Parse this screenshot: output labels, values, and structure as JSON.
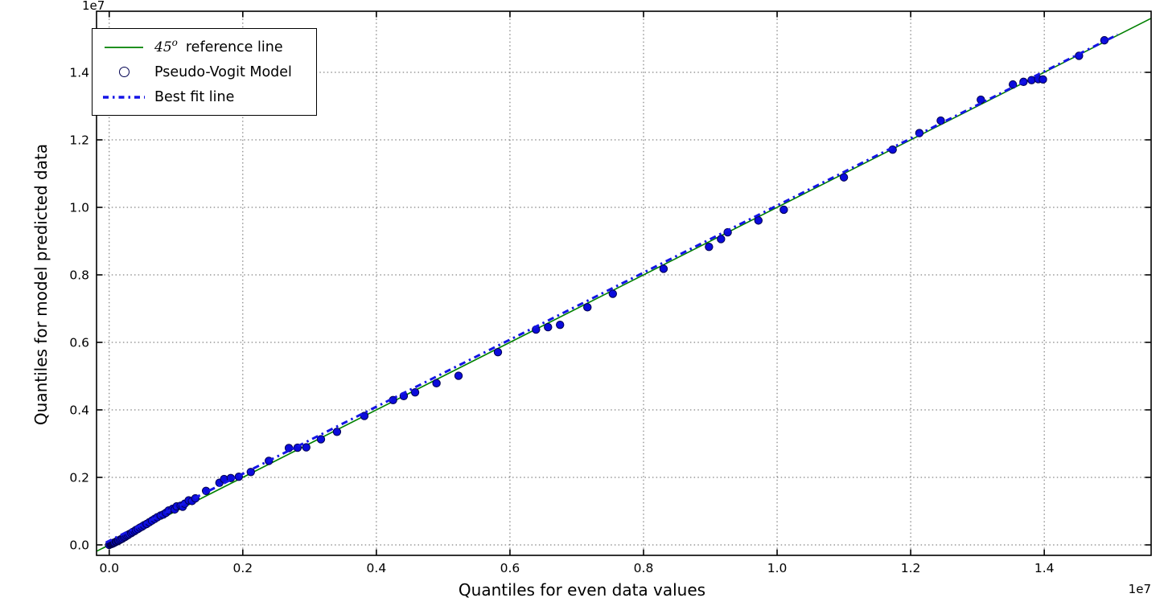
{
  "figure": {
    "background": "#ffffff",
    "plot_background": "#ffffff"
  },
  "chart_data": {
    "type": "scatter",
    "title": "",
    "xlabel": "Quantiles for even data values",
    "ylabel": "Quantiles for model predicted data",
    "x_offset_label": "1e7",
    "y_offset_label": "1e7",
    "unit_multiplier": 10000000,
    "xlim": [
      -0.019,
      1.56
    ],
    "ylim": [
      -0.031,
      1.581
    ],
    "grid": {
      "on": true,
      "style": "dotted",
      "color": "#666666"
    },
    "xticks": {
      "values": [
        0.0,
        0.2,
        0.4,
        0.6,
        0.8,
        1.0,
        1.2,
        1.4
      ],
      "labels": [
        "0.0",
        "0.2",
        "0.4",
        "0.6",
        "0.8",
        "1.0",
        "1.2",
        "1.4"
      ]
    },
    "yticks": {
      "values": [
        0.0,
        0.2,
        0.4,
        0.6,
        0.8,
        1.0,
        1.2,
        1.4
      ],
      "labels": [
        "0.0",
        "0.2",
        "0.4",
        "0.6",
        "0.8",
        "1.0",
        "1.2",
        "1.4"
      ]
    },
    "legend": {
      "position": "upper left",
      "items": [
        {
          "label": "45° reference line",
          "math": "45",
          "sup": "o",
          "text": "reference line",
          "swatch": "line",
          "color": "#008000"
        },
        {
          "label": "Pseudo-Vogit Model",
          "text": "Pseudo-Vogit Model",
          "swatch": "dot",
          "color": "#0b0bdb"
        },
        {
          "label": "Best fit line",
          "text": "Best fit line",
          "swatch": "dashdot",
          "color": "#1414e6"
        }
      ]
    },
    "series": [
      {
        "name": "45-degree reference line",
        "type": "line",
        "color": "#008000",
        "width": 1.6,
        "points": [
          [
            -0.019,
            -0.019
          ],
          [
            1.56,
            1.56
          ]
        ]
      },
      {
        "name": "Pseudo-Vogit Model",
        "type": "scatter",
        "color": "#0b0bdb",
        "edge_color": "#000050",
        "marker_radius": 4.7,
        "points": [
          [
            0.0,
            0.0
          ],
          [
            0.002,
            0.002
          ],
          [
            0.003,
            0.003
          ],
          [
            0.004,
            0.003
          ],
          [
            0.005,
            0.004
          ],
          [
            0.006,
            0.005
          ],
          [
            0.007,
            0.006
          ],
          [
            0.008,
            0.007
          ],
          [
            0.01,
            0.009
          ],
          [
            0.011,
            0.01
          ],
          [
            0.013,
            0.012
          ],
          [
            0.014,
            0.013
          ],
          [
            0.016,
            0.015
          ],
          [
            0.018,
            0.017
          ],
          [
            0.02,
            0.019
          ],
          [
            0.022,
            0.022
          ],
          [
            0.024,
            0.024
          ],
          [
            0.026,
            0.027
          ],
          [
            0.028,
            0.029
          ],
          [
            0.03,
            0.032
          ],
          [
            0.033,
            0.035
          ],
          [
            0.035,
            0.038
          ],
          [
            0.038,
            0.041
          ],
          [
            0.04,
            0.044
          ],
          [
            0.043,
            0.047
          ],
          [
            0.046,
            0.051
          ],
          [
            0.049,
            0.054
          ],
          [
            0.052,
            0.058
          ],
          [
            0.056,
            0.062
          ],
          [
            0.06,
            0.067
          ],
          [
            0.064,
            0.072
          ],
          [
            0.068,
            0.077
          ],
          [
            0.072,
            0.082
          ],
          [
            0.077,
            0.087
          ],
          [
            0.081,
            0.09
          ],
          [
            0.085,
            0.095
          ],
          [
            0.089,
            0.102
          ],
          [
            0.095,
            0.107
          ],
          [
            0.098,
            0.105
          ],
          [
            0.101,
            0.114
          ],
          [
            0.107,
            0.116
          ],
          [
            0.11,
            0.113
          ],
          [
            0.113,
            0.122
          ],
          [
            0.119,
            0.132
          ],
          [
            0.124,
            0.13
          ],
          [
            0.129,
            0.138
          ],
          [
            0.145,
            0.16
          ],
          [
            0.165,
            0.184
          ],
          [
            0.172,
            0.195
          ],
          [
            0.182,
            0.198
          ],
          [
            0.194,
            0.202
          ],
          [
            0.212,
            0.216
          ],
          [
            0.239,
            0.249
          ],
          [
            0.269,
            0.287
          ],
          [
            0.282,
            0.288
          ],
          [
            0.295,
            0.289
          ],
          [
            0.317,
            0.313
          ],
          [
            0.341,
            0.335
          ],
          [
            0.382,
            0.382
          ],
          [
            0.425,
            0.429
          ],
          [
            0.441,
            0.441
          ],
          [
            0.458,
            0.452
          ],
          [
            0.49,
            0.479
          ],
          [
            0.523,
            0.501
          ],
          [
            0.582,
            0.571
          ],
          [
            0.639,
            0.638
          ],
          [
            0.657,
            0.645
          ],
          [
            0.675,
            0.652
          ],
          [
            0.716,
            0.704
          ],
          [
            0.754,
            0.744
          ],
          [
            0.83,
            0.818
          ],
          [
            0.898,
            0.883
          ],
          [
            0.916,
            0.906
          ],
          [
            0.926,
            0.926
          ],
          [
            0.972,
            0.961
          ],
          [
            1.01,
            0.993
          ],
          [
            1.1,
            1.089
          ],
          [
            1.173,
            1.171
          ],
          [
            1.213,
            1.22
          ],
          [
            1.245,
            1.257
          ],
          [
            1.305,
            1.319
          ],
          [
            1.353,
            1.364
          ],
          [
            1.369,
            1.372
          ],
          [
            1.381,
            1.377
          ],
          [
            1.391,
            1.38
          ],
          [
            1.398,
            1.379
          ],
          [
            1.452,
            1.449
          ],
          [
            1.49,
            1.495
          ]
        ]
      },
      {
        "name": "Best fit line",
        "type": "line",
        "dash": "dashdot",
        "color": "#1414e6",
        "width": 3,
        "points": [
          [
            -0.005,
            0.007
          ],
          [
            1.51,
            1.512
          ]
        ]
      }
    ]
  }
}
